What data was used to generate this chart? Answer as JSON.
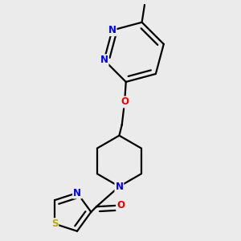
{
  "bg_color": "#ebebeb",
  "atom_colors": {
    "N": "#0000ee",
    "O": "#ee0000",
    "S": "#bbaa00",
    "C": "#000000"
  },
  "bond_color": "#000000",
  "bond_width": 1.6,
  "font_size": 8.5
}
